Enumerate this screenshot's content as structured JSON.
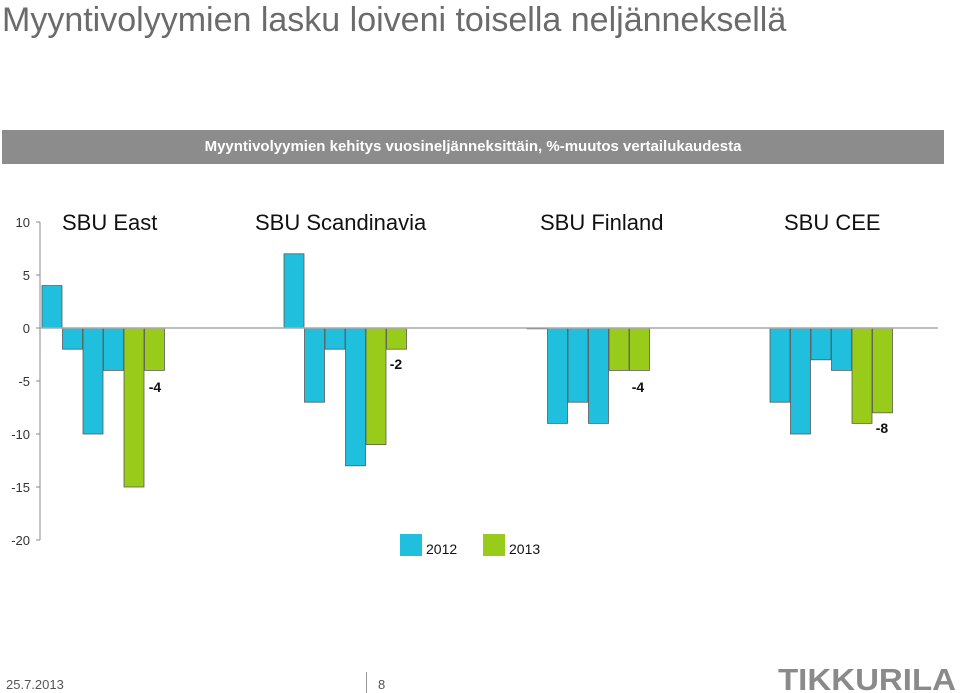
{
  "title": "Myyntivolyymien lasku loiveni toisella neljänneksellä",
  "banner": "Myyntivolyymien kehitys vuosineljänneksittäin, %-muutos vertailukaudesta",
  "chart_data": {
    "type": "bar",
    "ylim": [
      -20,
      10
    ],
    "yticks": [
      10,
      5,
      0,
      -5,
      -10,
      -15,
      -20
    ],
    "grid": false,
    "legend_position": "bottom-center",
    "colors": {
      "2012": "#1fbfdd",
      "2013": "#99cc1a"
    },
    "series_legend": [
      "2012",
      "2013"
    ],
    "groups": [
      {
        "name": "SBU East",
        "bars": [
          {
            "series": "2012",
            "value": 4
          },
          {
            "series": "2012",
            "value": -2
          },
          {
            "series": "2012",
            "value": -10
          },
          {
            "series": "2012",
            "value": -4
          },
          {
            "series": "2013",
            "value": -15
          },
          {
            "series": "2013",
            "value": -4
          }
        ],
        "data_label": "-4"
      },
      {
        "name": "SBU Scandinavia",
        "bars": [
          {
            "series": "2012",
            "value": 7
          },
          {
            "series": "2012",
            "value": -7
          },
          {
            "series": "2012",
            "value": -2
          },
          {
            "series": "2012",
            "value": -13
          },
          {
            "series": "2013",
            "value": -11
          },
          {
            "series": "2013",
            "value": -2
          }
        ],
        "data_label": "-2"
      },
      {
        "name": "SBU Finland",
        "bars": [
          {
            "series": "2012",
            "value": 0
          },
          {
            "series": "2012",
            "value": -9
          },
          {
            "series": "2012",
            "value": -7
          },
          {
            "series": "2012",
            "value": -9
          },
          {
            "series": "2013",
            "value": -4
          },
          {
            "series": "2013",
            "value": -4
          }
        ],
        "data_label": "-4"
      },
      {
        "name": "SBU CEE",
        "bars": [
          {
            "series": "2012",
            "value": -7
          },
          {
            "series": "2012",
            "value": -10
          },
          {
            "series": "2012",
            "value": -3
          },
          {
            "series": "2012",
            "value": -4
          },
          {
            "series": "2013",
            "value": -9
          },
          {
            "series": "2013",
            "value": -8
          }
        ],
        "data_label": "-8"
      }
    ]
  },
  "footer": {
    "date": "25.7.2013",
    "page": "8"
  },
  "logo": "TIKKURILA"
}
